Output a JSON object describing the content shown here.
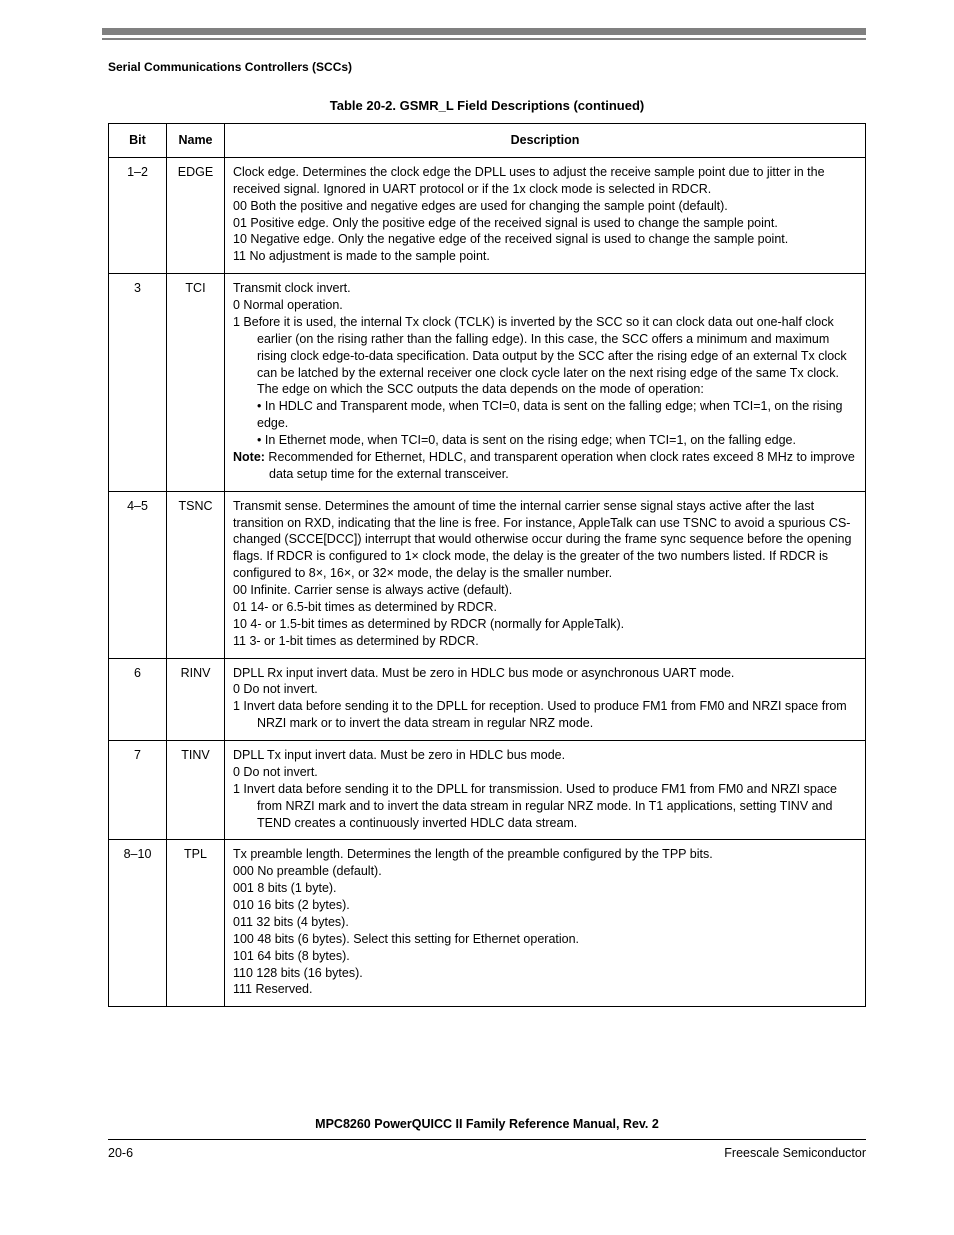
{
  "header": {
    "section": "Serial Communications Controllers (SCCs)"
  },
  "table": {
    "title": "Table 20-2. GSMR_L Field Descriptions (continued)",
    "columns": {
      "bit": "Bit",
      "name": "Name",
      "desc": "Description"
    },
    "rows": [
      {
        "bit": "1–2",
        "name": "EDGE",
        "lines": [
          {
            "cls": "plain",
            "t": "Clock edge. Determines the clock edge the DPLL uses to adjust the receive sample point due to jitter in the received signal. Ignored in UART protocol or if the 1x clock mode is selected in RDCR."
          },
          {
            "cls": "ind1",
            "t": "00 Both the positive and negative edges are used for changing the sample point (default)."
          },
          {
            "cls": "ind1",
            "t": "01 Positive edge. Only the positive edge of the received signal is used to change the sample point."
          },
          {
            "cls": "ind1",
            "t": "10 Negative edge. Only the negative edge of the received signal is used to change the sample point."
          },
          {
            "cls": "ind1",
            "t": "11 No adjustment is made to the sample point."
          }
        ]
      },
      {
        "bit": "3",
        "name": "TCI",
        "lines": [
          {
            "cls": "plain",
            "t": "Transmit clock invert."
          },
          {
            "cls": "ind1",
            "t": "0  Normal operation."
          },
          {
            "cls": "ind1",
            "t": "1  Before it is used, the internal Tx clock (TCLK) is inverted by the SCC so it can clock data out one-half clock earlier (on the rising rather than the falling edge). In this case, the SCC offers a minimum and maximum rising clock edge-to-data specification. Data output by the SCC after the rising edge of an external Tx clock can be latched by the external receiver one clock cycle later on the next rising edge of the same Tx clock. The edge on which the SCC outputs the data depends on the mode of operation:"
          },
          {
            "cls": "ind1c",
            "t": "• In HDLC and Transparent mode, when TCI=0, data is sent on the falling edge; when TCI=1, on the rising edge."
          },
          {
            "cls": "ind1c",
            "t": "• In Ethernet mode, when TCI=0, data is sent on the rising edge; when TCI=1, on the falling edge."
          },
          {
            "cls": "note",
            "html": "<b>Note:</b> Recommended for Ethernet, HDLC, and transparent operation when clock rates exceed 8 MHz to improve data setup time for the external transceiver."
          }
        ]
      },
      {
        "bit": "4–5",
        "name": "TSNC",
        "lines": [
          {
            "cls": "plain",
            "t": "Transmit sense. Determines the amount of time the internal carrier sense signal stays active after the last transition on RXD, indicating that the line is free. For instance, AppleTalk can use TSNC to avoid a spurious CS-changed (SCCE[DCC]) interrupt that would otherwise occur during the frame sync sequence before the opening flags. If RDCR is configured to 1× clock mode, the delay is the greater of the two numbers listed. If RDCR is configured to 8×, 16×, or 32× mode, the delay is the smaller number."
          },
          {
            "cls": "ind1",
            "t": "00 Infinite. Carrier sense is always active (default)."
          },
          {
            "cls": "ind1",
            "t": "01 14- or 6.5-bit times as determined by RDCR."
          },
          {
            "cls": "ind1",
            "t": "10 4- or 1.5-bit times as determined by RDCR (normally for AppleTalk)."
          },
          {
            "cls": "ind1",
            "t": "11 3- or 1-bit times as determined by RDCR."
          }
        ]
      },
      {
        "bit": "6",
        "name": "RINV",
        "lines": [
          {
            "cls": "plain",
            "t": "DPLL Rx input invert data. Must be zero in HDLC bus mode or asynchronous UART mode."
          },
          {
            "cls": "ind1",
            "t": "0  Do not invert."
          },
          {
            "cls": "ind1",
            "t": "1  Invert data before sending it to the DPLL for reception. Used to produce FM1 from FM0 and NRZI space from NRZI mark or to invert the data stream in regular NRZ mode."
          }
        ]
      },
      {
        "bit": "7",
        "name": "TINV",
        "lines": [
          {
            "cls": "plain",
            "t": "DPLL Tx input invert data. Must be zero in HDLC bus mode."
          },
          {
            "cls": "ind1",
            "t": "0  Do not invert."
          },
          {
            "cls": "ind1",
            "t": "1  Invert data before sending it to the DPLL for transmission. Used to produce FM1 from FM0 and NRZI space from NRZI mark and to invert the data stream in regular NRZ mode. In T1 applications, setting TINV and TEND creates a continuously inverted HDLC data stream."
          }
        ]
      },
      {
        "bit": "8–10",
        "name": "TPL",
        "lines": [
          {
            "cls": "plain",
            "t": "Tx preamble length. Determines the length of the preamble configured by the TPP bits."
          },
          {
            "cls": "ind2",
            "t": "000  No preamble (default)."
          },
          {
            "cls": "ind2",
            "t": "001  8 bits (1 byte)."
          },
          {
            "cls": "ind2",
            "t": "010  16 bits (2 bytes)."
          },
          {
            "cls": "ind2",
            "t": "011  32 bits (4 bytes)."
          },
          {
            "cls": "ind2",
            "t": "100  48 bits (6 bytes). Select this setting for Ethernet operation."
          },
          {
            "cls": "ind2",
            "t": "101  64 bits (8 bytes)."
          },
          {
            "cls": "ind2",
            "t": "110  128 bits (16 bytes)."
          },
          {
            "cls": "ind2",
            "t": "111  Reserved."
          }
        ]
      }
    ]
  },
  "footer": {
    "manual": "MPC8260 PowerQUICC II Family Reference Manual, Rev. 2",
    "page": "20-6",
    "vendor": "Freescale Semiconductor"
  }
}
